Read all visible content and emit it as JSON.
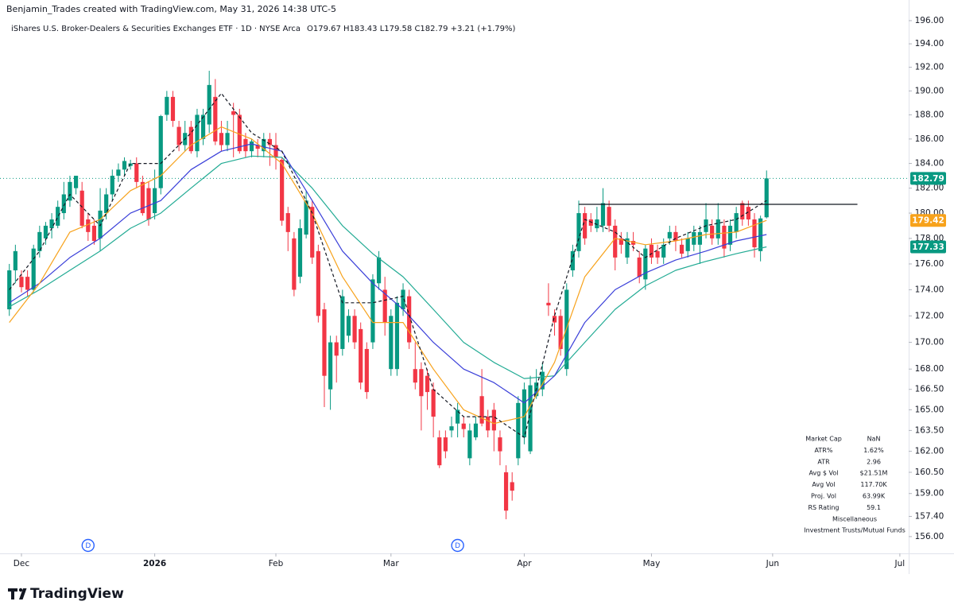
{
  "header": {
    "credit": "Benjamin_Trades created with TradingView.com, May 31, 2026 14:38 UTC-5",
    "symbol": "iShares U.S. Broker-Dealers & Securities Exchanges ETF · 1D · NYSE Arca",
    "ohlc": "O179.67 H183.43 L179.58 C182.79 +3.21 (+1.79%)"
  },
  "chart_data": {
    "type": "candlestick",
    "open": [
      172.5,
      175.5,
      175,
      175,
      174,
      177,
      178,
      178.8,
      179,
      180,
      181,
      182,
      181.8,
      179.5,
      179,
      178,
      180,
      181.5,
      183,
      183.5,
      183.8,
      184,
      182.5,
      182,
      180,
      182,
      188,
      189.5,
      187,
      185.5,
      187,
      185,
      186,
      187.2,
      189.5,
      186.5,
      185.5,
      188.3,
      188,
      186,
      185,
      185.5,
      185,
      186,
      185.5,
      184.3,
      180,
      178,
      175,
      178.3,
      180.5,
      177,
      172.5,
      166.5,
      170,
      169.5,
      170.5,
      172,
      171,
      169.5,
      170,
      174.5,
      174,
      168,
      168,
      172.5,
      173.5,
      168,
      168,
      167.5,
      166.5,
      163,
      163,
      163.5,
      164,
      164,
      161.5,
      163,
      166,
      164.5,
      165,
      163,
      160.5,
      159.8,
      161.5,
      163,
      162,
      166,
      166.5,
      173,
      172,
      172,
      168,
      175.5,
      177,
      180,
      179.5,
      178.8,
      179,
      180.5,
      179,
      178,
      176.5,
      177.8,
      176.5,
      174.8,
      177.5,
      177,
      176.5,
      178,
      178.5,
      177.5,
      177,
      177.5,
      177.5,
      178.5,
      179,
      178,
      179,
      177.5,
      178.5,
      180.8,
      180.5,
      179.5,
      177,
      179.67
    ],
    "high": [
      176,
      177.5,
      175.5,
      175.5,
      177.5,
      179,
      179.3,
      180,
      181,
      182.5,
      183,
      183,
      182.5,
      180,
      179.5,
      182,
      182,
      183.5,
      184,
      184.5,
      184.3,
      184.5,
      183,
      182.5,
      183.5,
      188,
      190,
      190,
      187.5,
      187.5,
      187.5,
      188.5,
      188.5,
      191.7,
      191,
      187.5,
      187.5,
      189,
      188.5,
      186.5,
      186,
      186,
      186.5,
      186.5,
      186.5,
      184.5,
      180.5,
      178.5,
      179.5,
      181.8,
      181,
      177.5,
      173,
      170.5,
      170.5,
      174,
      172.5,
      172.5,
      171.5,
      170,
      175.2,
      177,
      175,
      172.5,
      173.5,
      174.5,
      174,
      170,
      168.5,
      168,
      167,
      163.5,
      163.5,
      164.5,
      165.5,
      164.5,
      164,
      164.5,
      168,
      165,
      165.5,
      163.5,
      161,
      160.5,
      166,
      167,
      167.5,
      168,
      168.5,
      174.5,
      172.5,
      172.5,
      174.5,
      177.5,
      181,
      180.5,
      180,
      180.5,
      182,
      181,
      179.5,
      178.5,
      178.5,
      178.5,
      177,
      177.5,
      178,
      177.5,
      178,
      179,
      179,
      178,
      178.5,
      179,
      179,
      180.8,
      179.5,
      180.8,
      179.5,
      179.5,
      180.5,
      181,
      181,
      180,
      179.8,
      183.43
    ],
    "low": [
      172,
      174.5,
      173.8,
      173.5,
      173.8,
      176.5,
      177.5,
      178,
      178.8,
      179.5,
      180.5,
      181.5,
      178.8,
      177.8,
      177.5,
      177,
      179.5,
      181,
      182.5,
      183,
      183.5,
      182,
      179.8,
      179,
      179.5,
      181.5,
      187.5,
      187,
      185,
      185,
      184.8,
      184.5,
      185.5,
      186.5,
      185.5,
      185,
      185,
      184.5,
      184.8,
      184.5,
      184.5,
      184.5,
      184.5,
      183.8,
      183.5,
      179,
      177,
      173.5,
      174.5,
      178,
      176,
      171.5,
      165.2,
      165,
      167,
      169,
      170,
      169.5,
      166.5,
      165.8,
      169.5,
      174,
      170.5,
      167.5,
      167.5,
      172,
      169.5,
      166.5,
      163.5,
      165,
      163,
      160.8,
      161.5,
      163,
      163,
      163,
      161,
      162.8,
      163.8,
      163,
      162,
      161,
      157.2,
      158.5,
      161,
      162.5,
      161.8,
      165.8,
      166,
      172,
      170.5,
      169,
      167.5,
      175,
      176.5,
      177.5,
      178.5,
      178.5,
      178.5,
      178.5,
      175.5,
      176.8,
      176,
      177,
      174.5,
      174,
      176,
      176,
      176,
      177.5,
      177,
      176.5,
      176.5,
      177,
      176,
      178,
      177.5,
      177.5,
      176.5,
      177,
      178,
      179,
      179,
      176.5,
      176.2,
      179.58
    ],
    "close": [
      175.5,
      177,
      174.2,
      174,
      177.2,
      178.5,
      179,
      179.5,
      180.5,
      181.5,
      182.5,
      183,
      179,
      178.5,
      177.8,
      180.2,
      181.5,
      183,
      183.5,
      184.2,
      184,
      182.5,
      180,
      179.5,
      182,
      187.9,
      189.5,
      187.5,
      185.5,
      186.5,
      185,
      188,
      188,
      190.5,
      185.8,
      185.5,
      186.5,
      188,
      185,
      185,
      185.8,
      185.2,
      186,
      185.5,
      184.5,
      179.4,
      178.5,
      174,
      178.8,
      181,
      176.5,
      172,
      167.5,
      170,
      169,
      173.5,
      172,
      170,
      167,
      166.3,
      174.8,
      176.5,
      171.5,
      172,
      173,
      174,
      170,
      167,
      166,
      166.3,
      164.5,
      161,
      162,
      163.8,
      165,
      163.6,
      163.5,
      164,
      164,
      163.5,
      163.5,
      162,
      157.8,
      159.2,
      165.5,
      166.5,
      166.8,
      167,
      167.8,
      172.8,
      171.5,
      169.5,
      174,
      177,
      180,
      178,
      179,
      179.5,
      180.8,
      179,
      176.5,
      177.5,
      178,
      177.5,
      175,
      177.2,
      176.5,
      176.5,
      177.5,
      178.5,
      177.8,
      176.8,
      178,
      178.5,
      178.5,
      179.5,
      178,
      179.5,
      177.2,
      179,
      180,
      179.5,
      179.5,
      177.3,
      179.58,
      182.79
    ],
    "up_color": "#089981",
    "down_color": "#f23645",
    "xlim": [
      -1.54,
      148.46
    ],
    "xticks": [
      {
        "value": 2,
        "label": "Dec"
      },
      {
        "value": 24,
        "label": "2026"
      },
      {
        "value": 44,
        "label": "Feb"
      },
      {
        "value": 63,
        "label": "Mar"
      },
      {
        "value": 85,
        "label": "Apr"
      },
      {
        "value": 106,
        "label": "May"
      },
      {
        "value": 126,
        "label": "Jun"
      },
      {
        "value": 147,
        "label": "Jul"
      }
    ],
    "ylim": [
      154.9,
      196.55
    ],
    "log_scale": true,
    "grid": false,
    "yticks": [
      {
        "value": 196,
        "label": "196.00"
      },
      {
        "value": 194,
        "label": "194.00"
      },
      {
        "value": 192,
        "label": "192.00"
      },
      {
        "value": 190,
        "label": "190.00"
      },
      {
        "value": 188,
        "label": "188.00"
      },
      {
        "value": 186,
        "label": "186.00"
      },
      {
        "value": 184,
        "label": "184.00"
      },
      {
        "value": 182,
        "label": "182.00"
      },
      {
        "value": 180,
        "label": "180.00"
      },
      {
        "value": 178,
        "label": "178.00"
      },
      {
        "value": 176,
        "label": "176.00"
      },
      {
        "value": 174,
        "label": "174.00"
      },
      {
        "value": 172,
        "label": "172.00"
      },
      {
        "value": 170,
        "label": "170.00"
      },
      {
        "value": 168,
        "label": "168.00"
      },
      {
        "value": 166.5,
        "label": "166.50"
      },
      {
        "value": 165,
        "label": "165.00"
      },
      {
        "value": 163.5,
        "label": "163.50"
      },
      {
        "value": 162,
        "label": "162.00"
      },
      {
        "value": 160.5,
        "label": "160.50"
      },
      {
        "value": 159,
        "label": "159.00"
      },
      {
        "value": 157.4,
        "label": "157.40"
      },
      {
        "value": 156,
        "label": "156.00"
      }
    ],
    "series": [
      {
        "color": "#22ab94",
        "x": [
          0,
          5,
          10,
          15,
          20,
          25,
          30,
          35,
          40,
          45,
          50,
          55,
          60,
          65,
          70,
          75,
          80,
          85,
          90,
          95,
          100,
          105,
          110,
          115,
          120,
          125
        ],
        "values": [
          172.7,
          174,
          175.5,
          177,
          178.8,
          180,
          182,
          184,
          184.6,
          184.5,
          182,
          179,
          176.8,
          175,
          172.5,
          170,
          168.5,
          167.3,
          167.5,
          170,
          172.5,
          174.3,
          175.5,
          176.2,
          176.8,
          177.33
        ]
      },
      {
        "color": "#3a3fd9",
        "x": [
          0,
          5,
          10,
          15,
          20,
          25,
          30,
          35,
          40,
          45,
          50,
          55,
          60,
          65,
          70,
          75,
          80,
          85,
          90,
          95,
          100,
          105,
          110,
          115,
          120,
          125
        ],
        "values": [
          173,
          174.5,
          176.5,
          178,
          180,
          181,
          183.5,
          185,
          185.6,
          185,
          181,
          177,
          174.5,
          172.5,
          170,
          168,
          167,
          165.5,
          167.5,
          171.5,
          174,
          175.3,
          176.3,
          177,
          177.8,
          178.3
        ]
      },
      {
        "color": "#f7a21b",
        "x": [
          0,
          5,
          10,
          15,
          20,
          25,
          30,
          35,
          40,
          45,
          50,
          55,
          60,
          65,
          70,
          75,
          80,
          85,
          90,
          95,
          100,
          105,
          110,
          115,
          120,
          125
        ],
        "values": [
          171.5,
          174.5,
          178.5,
          179.5,
          181.8,
          183,
          185.5,
          187,
          186,
          184,
          180,
          175,
          171.5,
          171.5,
          168,
          165,
          164,
          164.5,
          168.5,
          175,
          178,
          177.5,
          177.8,
          178.3,
          178.5,
          179.42
        ]
      },
      {
        "color": "#131722",
        "dashed": true,
        "x": [
          0,
          5,
          10,
          15,
          20,
          25,
          30,
          35,
          40,
          45,
          50,
          55,
          60,
          65,
          70,
          75,
          80,
          85,
          90,
          95,
          100,
          105,
          110,
          115,
          120,
          125
        ],
        "values": [
          174,
          177,
          181.5,
          179,
          184,
          184,
          186.5,
          189.8,
          186.5,
          185,
          180,
          173,
          173,
          173.5,
          166.5,
          164.5,
          164.5,
          163,
          172,
          179.5,
          178.5,
          176.5,
          178,
          179,
          179.5,
          181
        ]
      }
    ],
    "level_line": {
      "value": 180.7,
      "x": [
        94,
        140
      ],
      "color": "#131722"
    },
    "price_tags": [
      {
        "value": 182.79,
        "color": "#089981",
        "dotted_line": true
      },
      {
        "value": 179.42,
        "color": "#f7a21b"
      },
      {
        "value": 177.33,
        "color": "#089981"
      }
    ],
    "dividends": [
      {
        "x": 13,
        "label": "D"
      },
      {
        "x": 74,
        "label": "D"
      }
    ]
  },
  "info_table": {
    "rows": [
      [
        "Market Cap",
        "NaN"
      ],
      [
        "ATR%",
        "1.62%"
      ],
      [
        "ATR",
        "2.96"
      ],
      [
        "Avg $ Vol",
        "$21.51M"
      ],
      [
        "Avg Vol",
        "117.70K"
      ],
      [
        "Proj. Vol",
        "63.99K"
      ],
      [
        "RS Rating",
        "59.1"
      ],
      [
        "Miscellaneous"
      ],
      [
        "Investment Trusts/Mutual Funds"
      ]
    ]
  },
  "footer": {
    "brand": "TradingView"
  }
}
